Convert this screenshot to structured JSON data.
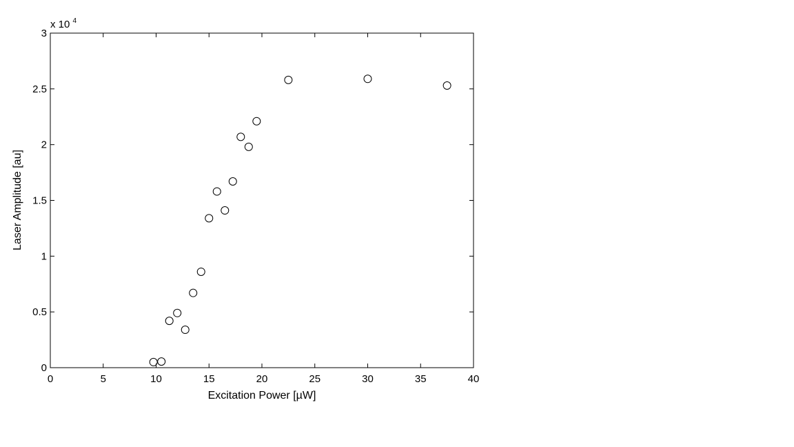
{
  "chart_data": {
    "type": "scatter",
    "xlabel": "Excitation Power [µW]",
    "ylabel": "Laser Amplitude [au]",
    "y_multiplier_label": {
      "base": "x 10",
      "exponent": "4"
    },
    "xlim": [
      0,
      40
    ],
    "ylim": [
      0,
      30000
    ],
    "x_ticks": [
      0,
      5,
      10,
      15,
      20,
      25,
      30,
      35,
      40
    ],
    "x_tick_labels": [
      "0",
      "5",
      "10",
      "15",
      "20",
      "25",
      "30",
      "35",
      "40"
    ],
    "y_ticks": [
      0,
      5000,
      10000,
      15000,
      20000,
      25000,
      30000
    ],
    "y_tick_labels": [
      "0",
      "0.5",
      "1",
      "1.5",
      "2",
      "2.5",
      "3"
    ],
    "grid": false,
    "marker": "open-circle",
    "marker_color": "#000000",
    "points": [
      {
        "x": 9.75,
        "y": 500
      },
      {
        "x": 10.5,
        "y": 550
      },
      {
        "x": 11.25,
        "y": 4200
      },
      {
        "x": 12.0,
        "y": 4900
      },
      {
        "x": 12.75,
        "y": 3400
      },
      {
        "x": 13.5,
        "y": 6700
      },
      {
        "x": 14.25,
        "y": 8600
      },
      {
        "x": 15.0,
        "y": 13400
      },
      {
        "x": 15.75,
        "y": 15800
      },
      {
        "x": 16.5,
        "y": 14100
      },
      {
        "x": 17.25,
        "y": 16700
      },
      {
        "x": 18.0,
        "y": 20700
      },
      {
        "x": 18.75,
        "y": 19800
      },
      {
        "x": 19.5,
        "y": 22100
      },
      {
        "x": 22.5,
        "y": 25800
      },
      {
        "x": 30.0,
        "y": 25900
      },
      {
        "x": 37.5,
        "y": 25300
      }
    ]
  }
}
